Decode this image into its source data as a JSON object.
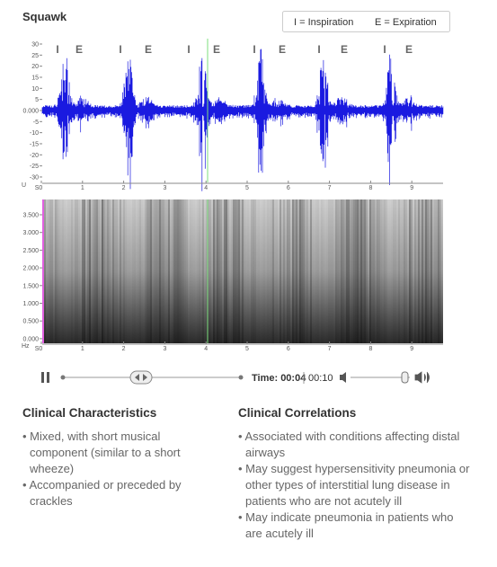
{
  "header": {
    "title": "Squawk",
    "legend": [
      "I = Inspiration",
      "E = Expiration"
    ]
  },
  "waveform": {
    "markers": [
      "I",
      "E",
      "I",
      "E",
      "I",
      "E",
      "I",
      "E",
      "I",
      "E",
      "I",
      "E"
    ],
    "yticks": [
      "30",
      "25",
      "20",
      "15",
      "10",
      "5",
      "0.000",
      "-5",
      "-10",
      "-15",
      "-20",
      "-25",
      "-30"
    ],
    "unit": "U",
    "xticks": [
      "S0",
      "1",
      "2",
      "3",
      "4",
      "5",
      "6",
      "7",
      "8",
      "9"
    ]
  },
  "spectrogram": {
    "yticks": [
      "3.500",
      "3.000",
      "2.500",
      "2.000",
      "1.500",
      "1.000",
      "0.500",
      "0.000"
    ],
    "unit": "Hz",
    "xticks": [
      "S0",
      "1",
      "2",
      "3",
      "4",
      "5",
      "6",
      "7",
      "8",
      "9"
    ]
  },
  "player": {
    "time": "Time: 00:04",
    "total": "00:10"
  },
  "sections": [
    {
      "heading": "Clinical Characteristics",
      "items": [
        "Mixed, with short musical component (similar to a short wheeze)",
        "Accompanied or preceded by crackles"
      ]
    },
    {
      "heading": "Clinical Correlations",
      "items": [
        "Associated with conditions affecting distal airways",
        "May suggest hypersensitivity pneumonia or other types of interstitial lung disease in patients who are not acutely ill",
        "May indicate pneumonia in patients who are acutely ill"
      ]
    }
  ]
}
